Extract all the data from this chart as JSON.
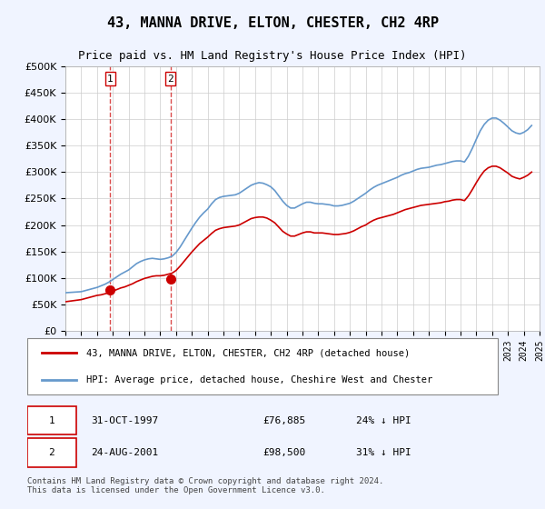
{
  "title": "43, MANNA DRIVE, ELTON, CHESTER, CH2 4RP",
  "subtitle": "Price paid vs. HM Land Registry's House Price Index (HPI)",
  "hpi_color": "#6699cc",
  "price_color": "#cc0000",
  "background_color": "#f0f4ff",
  "plot_bg_color": "#ffffff",
  "ylim": [
    0,
    500000
  ],
  "yticks": [
    0,
    50000,
    100000,
    150000,
    200000,
    250000,
    300000,
    350000,
    400000,
    450000,
    500000
  ],
  "xmin": 1995,
  "xmax": 2025,
  "sale1_x": 1997.83,
  "sale1_y": 76885,
  "sale2_x": 2001.65,
  "sale2_y": 98500,
  "sale1_label": "1",
  "sale2_label": "2",
  "legend_line1": "43, MANNA DRIVE, ELTON, CHESTER, CH2 4RP (detached house)",
  "legend_line2": "HPI: Average price, detached house, Cheshire West and Chester",
  "table_row1": "1    31-OCT-1997         £76,885        24% ↓ HPI",
  "table_row2": "2    24-AUG-2001         £98,500        31% ↓ HPI",
  "footnote": "Contains HM Land Registry data © Crown copyright and database right 2024.\nThis data is licensed under the Open Government Licence v3.0.",
  "hpi_data_x": [
    1995.0,
    1995.25,
    1995.5,
    1995.75,
    1996.0,
    1996.25,
    1996.5,
    1996.75,
    1997.0,
    1997.25,
    1997.5,
    1997.75,
    1998.0,
    1998.25,
    1998.5,
    1998.75,
    1999.0,
    1999.25,
    1999.5,
    1999.75,
    2000.0,
    2000.25,
    2000.5,
    2000.75,
    2001.0,
    2001.25,
    2001.5,
    2001.75,
    2002.0,
    2002.25,
    2002.5,
    2002.75,
    2003.0,
    2003.25,
    2003.5,
    2003.75,
    2004.0,
    2004.25,
    2004.5,
    2004.75,
    2005.0,
    2005.25,
    2005.5,
    2005.75,
    2006.0,
    2006.25,
    2006.5,
    2006.75,
    2007.0,
    2007.25,
    2007.5,
    2007.75,
    2008.0,
    2008.25,
    2008.5,
    2008.75,
    2009.0,
    2009.25,
    2009.5,
    2009.75,
    2010.0,
    2010.25,
    2010.5,
    2010.75,
    2011.0,
    2011.25,
    2011.5,
    2011.75,
    2012.0,
    2012.25,
    2012.5,
    2012.75,
    2013.0,
    2013.25,
    2013.5,
    2013.75,
    2014.0,
    2014.25,
    2014.5,
    2014.75,
    2015.0,
    2015.25,
    2015.5,
    2015.75,
    2016.0,
    2016.25,
    2016.5,
    2016.75,
    2017.0,
    2017.25,
    2017.5,
    2017.75,
    2018.0,
    2018.25,
    2018.5,
    2018.75,
    2019.0,
    2019.25,
    2019.5,
    2019.75,
    2020.0,
    2020.25,
    2020.5,
    2020.75,
    2021.0,
    2021.25,
    2021.5,
    2021.75,
    2022.0,
    2022.25,
    2022.5,
    2022.75,
    2023.0,
    2023.25,
    2023.5,
    2023.75,
    2024.0,
    2024.25,
    2024.5
  ],
  "hpi_data_y": [
    72000,
    72500,
    73000,
    73500,
    74000,
    76000,
    78000,
    80000,
    82000,
    85000,
    88000,
    92000,
    97000,
    102000,
    107000,
    111000,
    115000,
    121000,
    127000,
    131000,
    134000,
    136000,
    137000,
    136000,
    135000,
    136000,
    138000,
    141000,
    148000,
    158000,
    170000,
    182000,
    194000,
    205000,
    215000,
    223000,
    230000,
    240000,
    248000,
    252000,
    254000,
    255000,
    256000,
    257000,
    260000,
    265000,
    270000,
    275000,
    278000,
    280000,
    279000,
    276000,
    272000,
    265000,
    255000,
    245000,
    237000,
    232000,
    232000,
    236000,
    240000,
    243000,
    243000,
    241000,
    240000,
    240000,
    239000,
    238000,
    236000,
    236000,
    237000,
    239000,
    241000,
    245000,
    250000,
    255000,
    260000,
    266000,
    271000,
    275000,
    278000,
    281000,
    284000,
    287000,
    290000,
    294000,
    297000,
    299000,
    302000,
    305000,
    307000,
    308000,
    309000,
    311000,
    313000,
    314000,
    316000,
    318000,
    320000,
    321000,
    321000,
    319000,
    330000,
    345000,
    362000,
    378000,
    390000,
    398000,
    402000,
    402000,
    398000,
    392000,
    385000,
    378000,
    374000,
    372000,
    375000,
    380000,
    388000
  ],
  "price_data_x": [
    1995.0,
    1995.25,
    1995.5,
    1995.75,
    1996.0,
    1996.25,
    1996.5,
    1996.75,
    1997.0,
    1997.25,
    1997.5,
    1997.75,
    1998.0,
    1998.25,
    1998.5,
    1998.75,
    1999.0,
    1999.25,
    1999.5,
    1999.75,
    2000.0,
    2000.25,
    2000.5,
    2000.75,
    2001.0,
    2001.25,
    2001.5,
    2001.75,
    2002.0,
    2002.25,
    2002.5,
    2002.75,
    2003.0,
    2003.25,
    2003.5,
    2003.75,
    2004.0,
    2004.25,
    2004.5,
    2004.75,
    2005.0,
    2005.25,
    2005.5,
    2005.75,
    2006.0,
    2006.25,
    2006.5,
    2006.75,
    2007.0,
    2007.25,
    2007.5,
    2007.75,
    2008.0,
    2008.25,
    2008.5,
    2008.75,
    2009.0,
    2009.25,
    2009.5,
    2009.75,
    2010.0,
    2010.25,
    2010.5,
    2010.75,
    2011.0,
    2011.25,
    2011.5,
    2011.75,
    2012.0,
    2012.25,
    2012.5,
    2012.75,
    2013.0,
    2013.25,
    2013.5,
    2013.75,
    2014.0,
    2014.25,
    2014.5,
    2014.75,
    2015.0,
    2015.25,
    2015.5,
    2015.75,
    2016.0,
    2016.25,
    2016.5,
    2016.75,
    2017.0,
    2017.25,
    2017.5,
    2017.75,
    2018.0,
    2018.25,
    2018.5,
    2018.75,
    2019.0,
    2019.25,
    2019.5,
    2019.75,
    2020.0,
    2020.25,
    2020.5,
    2020.75,
    2021.0,
    2021.25,
    2021.5,
    2021.75,
    2022.0,
    2022.25,
    2022.5,
    2022.75,
    2023.0,
    2023.25,
    2023.5,
    2023.75,
    2024.0,
    2024.25,
    2024.5
  ],
  "price_data_y": [
    55000,
    56000,
    57000,
    58000,
    59000,
    61000,
    63000,
    65000,
    67000,
    68000,
    70000,
    72000,
    75000,
    78000,
    81000,
    83000,
    86000,
    89000,
    93000,
    96000,
    99000,
    101000,
    103000,
    104000,
    104000,
    105000,
    107000,
    109000,
    114000,
    122000,
    131000,
    140000,
    149000,
    157000,
    165000,
    171000,
    177000,
    184000,
    190000,
    193000,
    195000,
    196000,
    197000,
    198000,
    200000,
    204000,
    208000,
    212000,
    214000,
    215000,
    215000,
    213000,
    209000,
    204000,
    196000,
    188000,
    183000,
    179000,
    179000,
    182000,
    185000,
    187000,
    187000,
    185000,
    185000,
    185000,
    184000,
    183000,
    182000,
    182000,
    183000,
    184000,
    186000,
    189000,
    193000,
    197000,
    200000,
    205000,
    209000,
    212000,
    214000,
    216000,
    218000,
    220000,
    223000,
    226000,
    229000,
    231000,
    233000,
    235000,
    237000,
    238000,
    239000,
    240000,
    241000,
    242000,
    244000,
    245000,
    247000,
    248000,
    248000,
    246000,
    255000,
    267000,
    280000,
    292000,
    302000,
    308000,
    311000,
    311000,
    308000,
    303000,
    298000,
    292000,
    289000,
    287000,
    290000,
    294000,
    300000
  ]
}
